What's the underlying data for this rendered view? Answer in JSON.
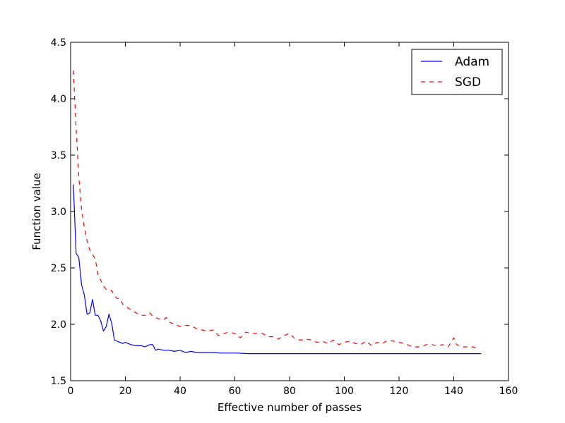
{
  "chart_data": {
    "type": "line",
    "xlabel": "Effective number of passes",
    "ylabel": "Function value",
    "xlim": [
      0,
      160
    ],
    "ylim": [
      1.5,
      4.5
    ],
    "x_ticks": [
      0,
      20,
      40,
      60,
      80,
      100,
      120,
      140,
      160
    ],
    "y_ticks": [
      "1.5",
      "2.0",
      "2.5",
      "3.0",
      "3.5",
      "4.0",
      "4.5"
    ],
    "grid": false,
    "legend_position": "top-right",
    "series": [
      {
        "name": "Adam",
        "color": "#0000ff",
        "style": "solid",
        "points": [
          [
            1,
            3.24
          ],
          [
            2,
            2.63
          ],
          [
            3,
            2.59
          ],
          [
            4,
            2.35
          ],
          [
            5,
            2.26
          ],
          [
            6,
            2.09
          ],
          [
            7,
            2.1
          ],
          [
            8,
            2.22
          ],
          [
            9,
            2.08
          ],
          [
            10,
            2.08
          ],
          [
            11,
            2.03
          ],
          [
            12,
            1.94
          ],
          [
            13,
            1.98
          ],
          [
            14,
            2.09
          ],
          [
            15,
            2.01
          ],
          [
            16,
            1.86
          ],
          [
            17,
            1.85
          ],
          [
            18,
            1.84
          ],
          [
            19,
            1.83
          ],
          [
            20,
            1.84
          ],
          [
            21,
            1.83
          ],
          [
            22,
            1.82
          ],
          [
            24,
            1.81
          ],
          [
            26,
            1.81
          ],
          [
            27,
            1.8
          ],
          [
            28,
            1.81
          ],
          [
            29,
            1.82
          ],
          [
            30,
            1.82
          ],
          [
            31,
            1.77
          ],
          [
            32,
            1.78
          ],
          [
            34,
            1.77
          ],
          [
            36,
            1.77
          ],
          [
            38,
            1.76
          ],
          [
            40,
            1.77
          ],
          [
            41,
            1.76
          ],
          [
            42,
            1.75
          ],
          [
            44,
            1.76
          ],
          [
            46,
            1.75
          ],
          [
            48,
            1.75
          ],
          [
            50,
            1.75
          ],
          [
            52,
            1.75
          ],
          [
            55,
            1.745
          ],
          [
            58,
            1.745
          ],
          [
            61,
            1.745
          ],
          [
            65,
            1.74
          ],
          [
            70,
            1.74
          ],
          [
            80,
            1.74
          ],
          [
            90,
            1.74
          ],
          [
            100,
            1.74
          ],
          [
            110,
            1.74
          ],
          [
            120,
            1.74
          ],
          [
            130,
            1.74
          ],
          [
            140,
            1.74
          ],
          [
            150,
            1.74
          ]
        ]
      },
      {
        "name": "SGD",
        "color": "#ff0000",
        "style": "dashed",
        "points": [
          [
            1,
            4.25
          ],
          [
            2,
            3.74
          ],
          [
            3,
            3.3
          ],
          [
            4,
            3.02
          ],
          [
            5,
            2.86
          ],
          [
            6,
            2.74
          ],
          [
            7,
            2.66
          ],
          [
            8,
            2.62
          ],
          [
            9,
            2.58
          ],
          [
            10,
            2.44
          ],
          [
            11,
            2.39
          ],
          [
            12,
            2.34
          ],
          [
            13,
            2.31
          ],
          [
            14,
            2.3
          ],
          [
            15,
            2.3
          ],
          [
            16,
            2.25
          ],
          [
            17,
            2.23
          ],
          [
            18,
            2.23
          ],
          [
            19,
            2.18
          ],
          [
            20,
            2.16
          ],
          [
            22,
            2.13
          ],
          [
            24,
            2.1
          ],
          [
            26,
            2.08
          ],
          [
            28,
            2.08
          ],
          [
            29,
            2.1
          ],
          [
            30,
            2.07
          ],
          [
            32,
            2.05
          ],
          [
            34,
            2.04
          ],
          [
            35,
            2.06
          ],
          [
            36,
            2.02
          ],
          [
            38,
            2.0
          ],
          [
            40,
            1.98
          ],
          [
            42,
            1.99
          ],
          [
            44,
            1.99
          ],
          [
            46,
            1.96
          ],
          [
            48,
            1.95
          ],
          [
            50,
            1.94
          ],
          [
            52,
            1.95
          ],
          [
            54,
            1.9
          ],
          [
            56,
            1.92
          ],
          [
            58,
            1.93
          ],
          [
            60,
            1.92
          ],
          [
            62,
            1.88
          ],
          [
            64,
            1.93
          ],
          [
            66,
            1.92
          ],
          [
            68,
            1.92
          ],
          [
            70,
            1.92
          ],
          [
            72,
            1.89
          ],
          [
            74,
            1.89
          ],
          [
            76,
            1.87
          ],
          [
            78,
            1.9
          ],
          [
            80,
            1.92
          ],
          [
            82,
            1.87
          ],
          [
            84,
            1.86
          ],
          [
            86,
            1.87
          ],
          [
            88,
            1.86
          ],
          [
            90,
            1.84
          ],
          [
            92,
            1.85
          ],
          [
            94,
            1.83
          ],
          [
            96,
            1.86
          ],
          [
            98,
            1.82
          ],
          [
            100,
            1.84
          ],
          [
            102,
            1.85
          ],
          [
            104,
            1.83
          ],
          [
            106,
            1.82
          ],
          [
            108,
            1.85
          ],
          [
            110,
            1.81
          ],
          [
            112,
            1.84
          ],
          [
            114,
            1.83
          ],
          [
            116,
            1.86
          ],
          [
            118,
            1.85
          ],
          [
            120,
            1.84
          ],
          [
            122,
            1.83
          ],
          [
            124,
            1.81
          ],
          [
            126,
            1.8
          ],
          [
            128,
            1.8
          ],
          [
            130,
            1.82
          ],
          [
            132,
            1.82
          ],
          [
            134,
            1.81
          ],
          [
            136,
            1.82
          ],
          [
            138,
            1.8
          ],
          [
            140,
            1.88
          ],
          [
            141,
            1.82
          ],
          [
            143,
            1.8
          ],
          [
            145,
            1.8
          ],
          [
            147,
            1.8
          ],
          [
            148,
            1.79
          ],
          [
            149,
            1.79
          ]
        ]
      }
    ]
  }
}
